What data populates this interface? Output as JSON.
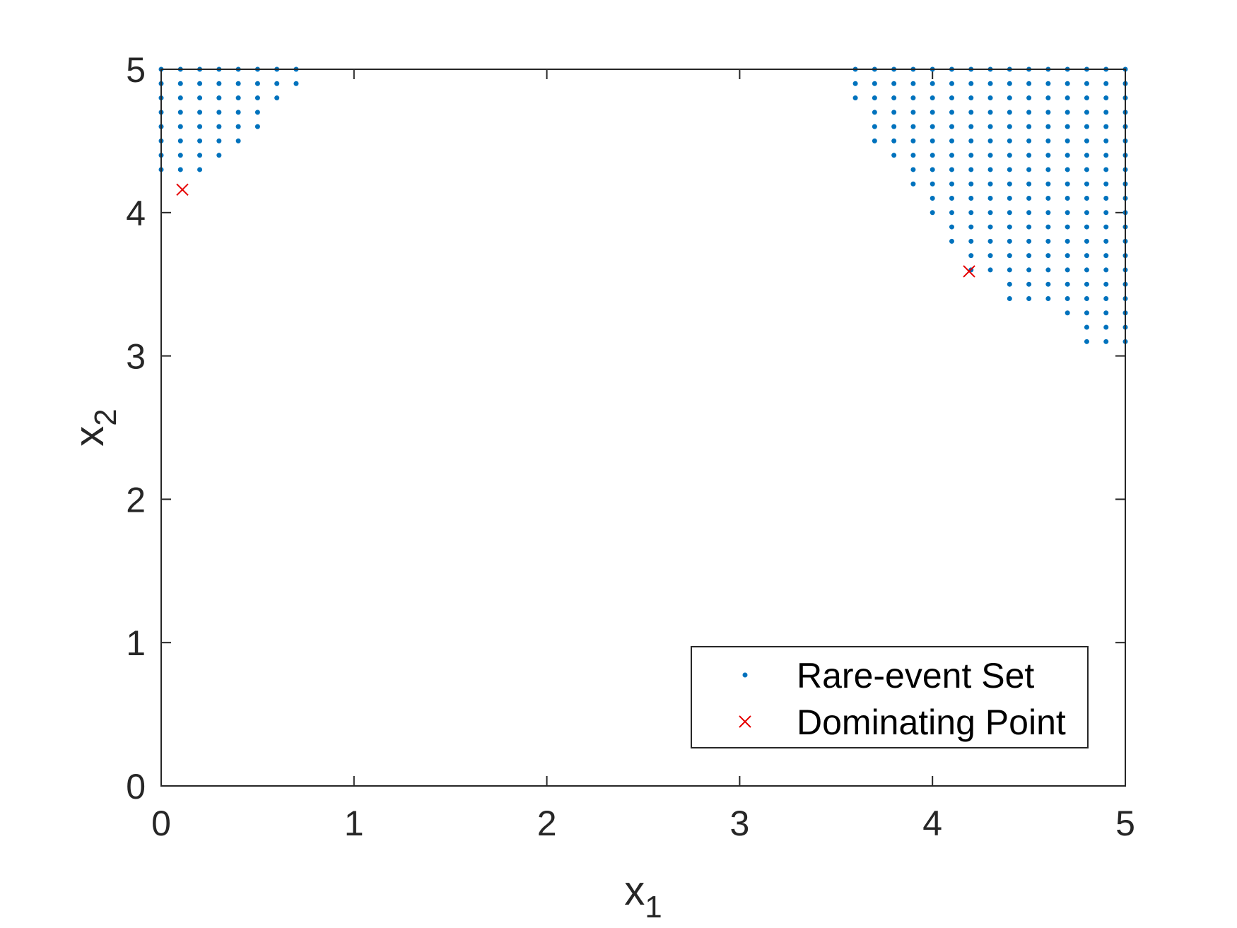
{
  "chart_data": {
    "type": "scatter",
    "title": "",
    "xlabel": "x",
    "xlabel_sub": "1",
    "ylabel": "x",
    "ylabel_sub": "2",
    "xlim": [
      0,
      5
    ],
    "ylim": [
      0,
      5
    ],
    "xticks": [
      "0",
      "1",
      "2",
      "3",
      "4",
      "5"
    ],
    "yticks": [
      "0",
      "1",
      "2",
      "3",
      "4",
      "5"
    ],
    "grid": false,
    "legend_position": "bottom-right",
    "series": [
      {
        "name": "Rare-event Set",
        "marker": "dot",
        "color": "#0072BD",
        "grid_step": 0.1,
        "regions": [
          {
            "corner": "top-left",
            "columns": [
              {
                "x": 0.0,
                "y_min": 4.3
              },
              {
                "x": 0.1,
                "y_min": 4.3
              },
              {
                "x": 0.2,
                "y_min": 4.3
              },
              {
                "x": 0.3,
                "y_min": 4.4
              },
              {
                "x": 0.4,
                "y_min": 4.5
              },
              {
                "x": 0.5,
                "y_min": 4.6
              },
              {
                "x": 0.6,
                "y_min": 4.8
              },
              {
                "x": 0.7,
                "y_min": 4.9
              }
            ]
          },
          {
            "corner": "top-right",
            "columns": [
              {
                "x": 3.6,
                "y_min": 4.8
              },
              {
                "x": 3.7,
                "y_min": 4.5
              },
              {
                "x": 3.8,
                "y_min": 4.4
              },
              {
                "x": 3.9,
                "y_min": 4.2
              },
              {
                "x": 4.0,
                "y_min": 4.0
              },
              {
                "x": 4.1,
                "y_min": 3.8
              },
              {
                "x": 4.2,
                "y_min": 3.6
              },
              {
                "x": 4.3,
                "y_min": 3.6
              },
              {
                "x": 4.4,
                "y_min": 3.4
              },
              {
                "x": 4.5,
                "y_min": 3.4
              },
              {
                "x": 4.6,
                "y_min": 3.4
              },
              {
                "x": 4.7,
                "y_min": 3.3
              },
              {
                "x": 4.8,
                "y_min": 3.1
              },
              {
                "x": 4.9,
                "y_min": 3.1
              },
              {
                "x": 5.0,
                "y_min": 3.1
              }
            ]
          }
        ],
        "y_max": 5.0
      },
      {
        "name": "Dominating Point",
        "marker": "x",
        "color": "#E60000",
        "points": [
          {
            "x": 0.11,
            "y": 4.16
          },
          {
            "x": 4.19,
            "y": 3.59
          }
        ]
      }
    ]
  }
}
